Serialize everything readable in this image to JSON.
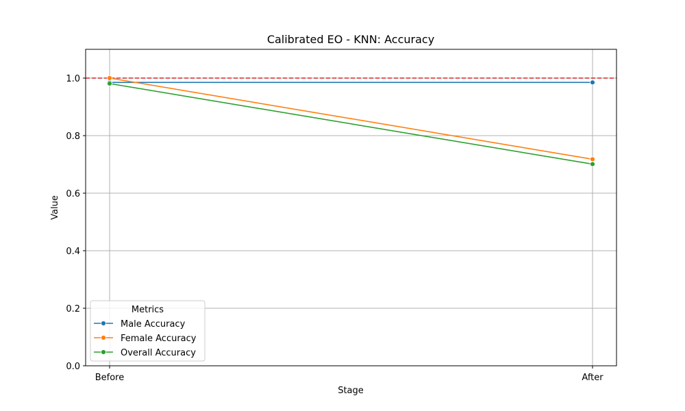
{
  "chart_data": {
    "type": "line",
    "title": "Calibrated EO - KNN: Accuracy",
    "xlabel": "Stage",
    "ylabel": "Value",
    "categories": [
      "Before",
      "After"
    ],
    "ylim": [
      0,
      1.1
    ],
    "yticks": [
      0.0,
      0.2,
      0.4,
      0.6,
      0.8,
      1.0
    ],
    "ytick_labels": [
      "0.0",
      "0.2",
      "0.4",
      "0.6",
      "0.8",
      "1.0"
    ],
    "grid": true,
    "series": [
      {
        "name": "Male Accuracy",
        "values": [
          0.985,
          0.985
        ],
        "color": "#1f77b4"
      },
      {
        "name": "Female Accuracy",
        "values": [
          1.0,
          0.718
        ],
        "color": "#ff7f0e"
      },
      {
        "name": "Overall Accuracy",
        "values": [
          0.981,
          0.701
        ],
        "color": "#2ca02c"
      }
    ],
    "reference_line": {
      "y": 1.0,
      "color": "#d62728",
      "style": "dashed"
    },
    "legend": {
      "title": "Metrics",
      "placement": "lower-left"
    }
  }
}
